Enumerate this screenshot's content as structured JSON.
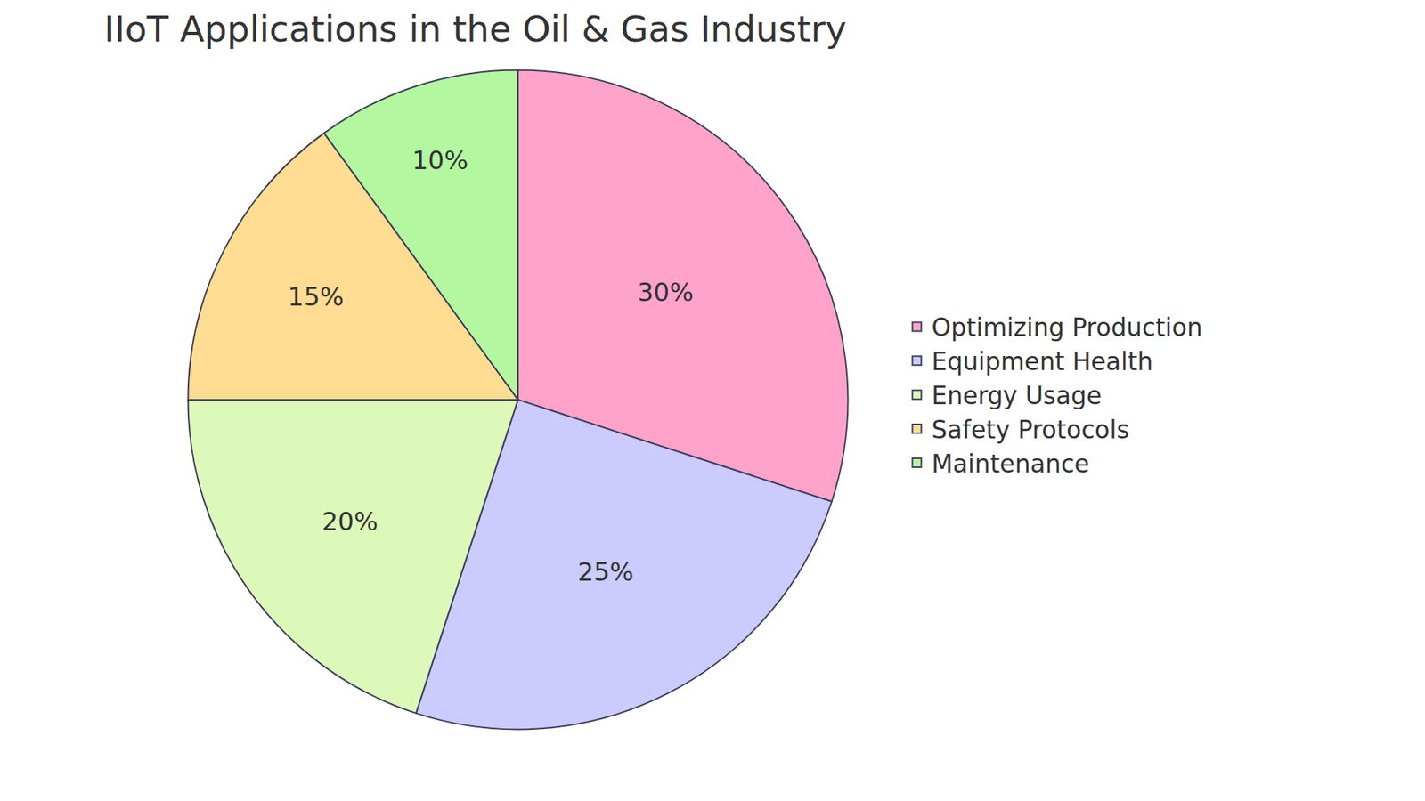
{
  "chart_data": {
    "type": "pie",
    "title": "IIoT Applications in the Oil & Gas Industry",
    "categories": [
      "Optimizing Production",
      "Equipment Health",
      "Energy Usage",
      "Safety Protocols",
      "Maintenance"
    ],
    "values": [
      30,
      25,
      20,
      15,
      10
    ],
    "value_labels": [
      "30%",
      "25%",
      "20%",
      "15%",
      "10%"
    ],
    "colors": [
      "#FFA3CB",
      "#CBCBFD",
      "#DCF9B9",
      "#FEDC92",
      "#B3F8A0"
    ],
    "data_labels": true,
    "legend": "right"
  }
}
